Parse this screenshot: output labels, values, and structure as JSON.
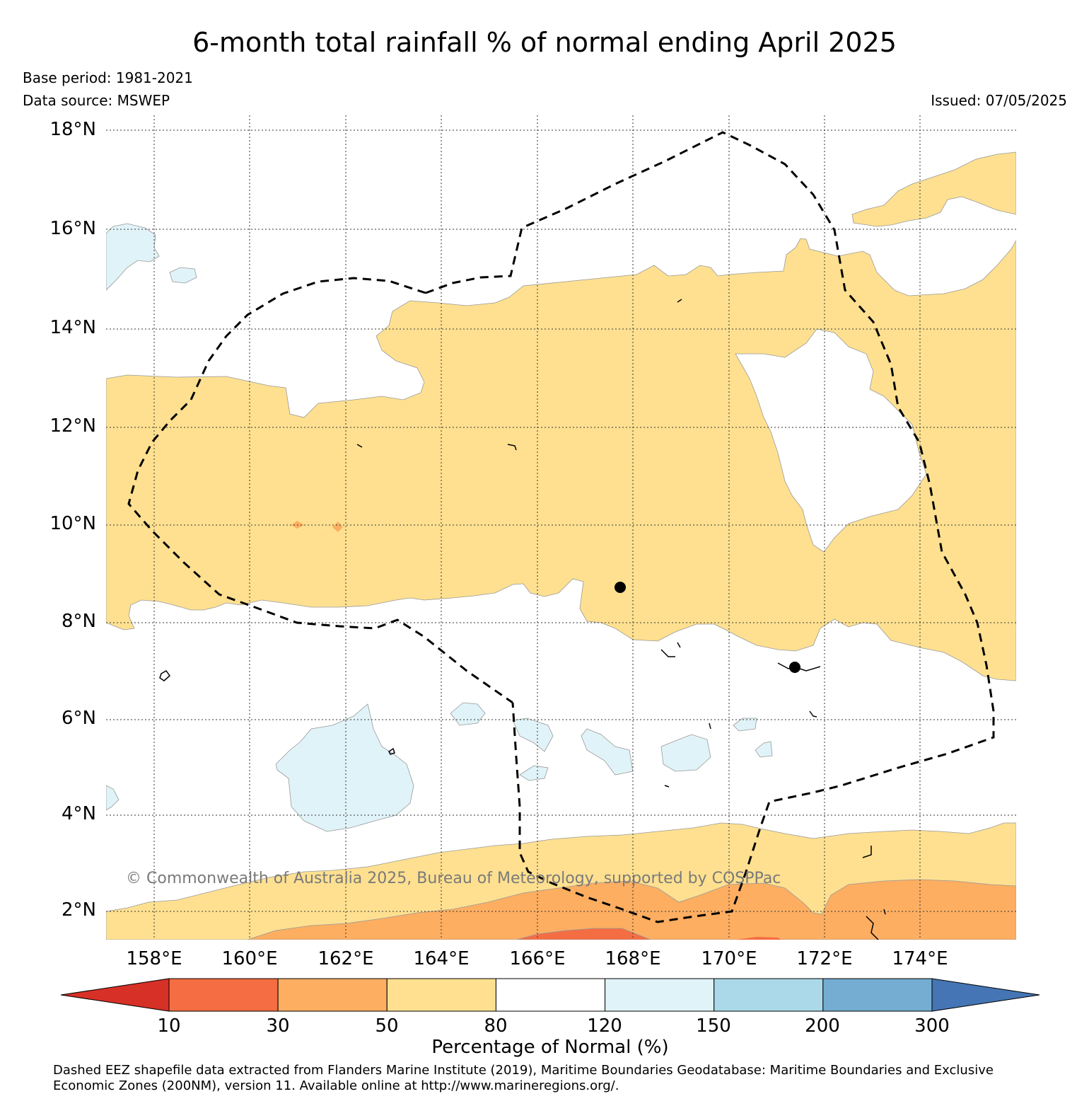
{
  "title": "6-month total rainfall % of normal ending April 2025",
  "base_period": "Base period: 1981-2021",
  "data_source": "Data source: MSWEP",
  "issued": "Issued: 07/05/2025",
  "copyright": "© Commonwealth of Australia 2025, Bureau of Meteorology, supported by COSPPac",
  "map": {
    "lon_range": [
      157,
      176
    ],
    "lat_range": [
      1.4,
      18.3
    ],
    "lat_ticks": [
      "18°N",
      "16°N",
      "14°N",
      "12°N",
      "10°N",
      "8°N",
      "6°N",
      "4°N",
      "2°N"
    ],
    "lon_ticks": [
      "158°E",
      "160°E",
      "162°E",
      "164°E",
      "166°E",
      "168°E",
      "170°E",
      "172°E",
      "174°E"
    ],
    "grid": true,
    "colors": {
      "below_10": "#d73027",
      "10_30": "#f46d43",
      "30_50": "#fdae61",
      "50_80": "#fee090",
      "80_120": "#ffffff",
      "120_150": "#e0f3f8",
      "150_200": "#abd9e9",
      "200_300": "#74add1",
      "above_300": "#4575b4"
    }
  },
  "colorbar": {
    "title": "Percentage of Normal (%)",
    "tick_labels": [
      "10",
      "30",
      "50",
      "80",
      "120",
      "150",
      "200",
      "300"
    ],
    "segment_colors": [
      "#f46d43",
      "#fdae61",
      "#fee090",
      "#ffffff",
      "#e0f3f8",
      "#abd9e9",
      "#74add1"
    ],
    "under_color": "#d73027",
    "over_color": "#4575b4"
  },
  "footnote": {
    "line1": "Dashed EEZ shapefile data extracted from Flanders Marine Institute (2019), Maritime Boundaries Geodatabase: Maritime Boundaries and Exclusive",
    "line2": "Economic Zones (200NM), version 11. Available online at http://www.marineregions.org/."
  }
}
